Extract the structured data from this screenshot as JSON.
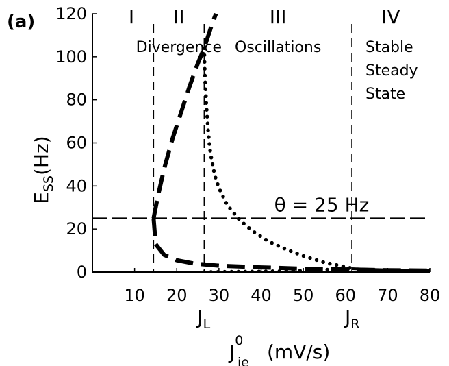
{
  "chart_data": {
    "type": "line",
    "panel_label": "(a)",
    "xlim": [
      0,
      80
    ],
    "ylim": [
      0,
      120
    ],
    "xticks": [
      10,
      20,
      30,
      40,
      50,
      60,
      70,
      80
    ],
    "yticks": [
      0,
      20,
      40,
      60,
      80,
      100,
      120
    ],
    "xlabel": {
      "main": "J",
      "sub": "ie",
      "sup": "0",
      "unit": "(mV/s)"
    },
    "ylabel": {
      "main": "E",
      "sub": "SS",
      "unit": "(Hz)"
    },
    "regions": [
      {
        "numeral": "I",
        "lines": []
      },
      {
        "numeral": "II",
        "lines": [
          "Divergence"
        ]
      },
      {
        "numeral": "III",
        "lines": [
          "Oscillations"
        ]
      },
      {
        "numeral": "IV",
        "lines": [
          "Stable",
          "Steady",
          "State"
        ]
      }
    ],
    "boundaries": [
      {
        "x": 14.5,
        "label": null
      },
      {
        "x": 26.5,
        "label": {
          "main": "J",
          "sub": "L"
        }
      },
      {
        "x": 61.5,
        "label": {
          "main": "J",
          "sub": "R"
        }
      }
    ],
    "threshold": {
      "y": 25,
      "label": "θ = 25 Hz"
    },
    "series": [
      {
        "style": "dashed",
        "x": [
          14.5,
          15.5,
          17,
          19,
          21,
          23,
          25,
          26.5,
          27.5,
          28.5,
          29.3
        ],
        "y": [
          25,
          35,
          48,
          62,
          74,
          86,
          97,
          104,
          110,
          116,
          120
        ]
      },
      {
        "style": "dashed",
        "x": [
          14.5,
          15,
          17,
          20,
          24,
          30,
          40,
          50,
          61.5,
          70,
          80
        ],
        "y": [
          25,
          13,
          8,
          5.5,
          4,
          3,
          2.2,
          1.6,
          1.2,
          0.9,
          0.7
        ]
      },
      {
        "style": "dotted",
        "x": [
          26.5,
          26.7,
          27,
          27.5,
          28,
          29,
          30,
          32,
          35,
          38,
          42,
          46,
          50,
          55,
          61.5
        ],
        "y": [
          104,
          90,
          78,
          64,
          55,
          45,
          39,
          31,
          24,
          19,
          14,
          10.5,
          7.5,
          4.5,
          1.8
        ]
      },
      {
        "style": "dotted",
        "x": [
          26.5,
          30,
          40,
          50,
          61.5
        ],
        "y": [
          0,
          0.1,
          0.3,
          0.7,
          1.5
        ]
      },
      {
        "style": "solid",
        "x": [
          61.5,
          65,
          70,
          75,
          80
        ],
        "y": [
          1.6,
          1.3,
          1.0,
          0.9,
          0.8
        ]
      }
    ]
  }
}
